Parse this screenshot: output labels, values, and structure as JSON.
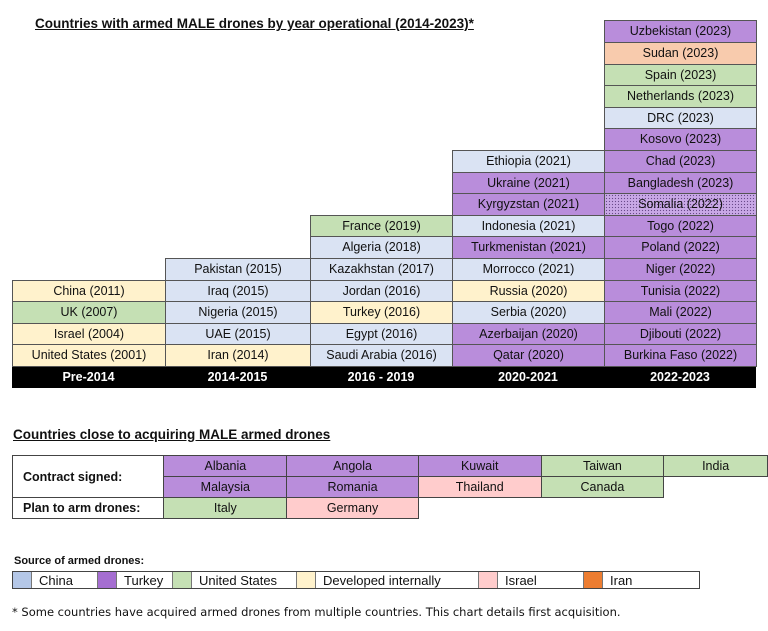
{
  "chart_data": {
    "type": "table",
    "title": "Countries with armed MALE drones by year operational (2014-2023)*",
    "source_colors": {
      "China": "#dae3f3",
      "China_alt": "#dce9f5",
      "Turkey": "#b98ddb",
      "United States": "#c5e0b4",
      "Developed internally": "#fff2cc",
      "Israel": "#ffcccc",
      "Iran": "#f8cbad",
      "Somalia_pattern": "#c9a8e6"
    },
    "columns": [
      {
        "header": "Pre-2014",
        "entries": [
          {
            "label": "United States (2001)",
            "source": "Developed internally"
          },
          {
            "label": "Israel (2004)",
            "source": "Developed internally"
          },
          {
            "label": "UK (2007)",
            "source": "United States"
          },
          {
            "label": "China (2011)",
            "source": "Developed internally"
          }
        ]
      },
      {
        "header": "2014-2015",
        "entries": [
          {
            "label": "Iran (2014)",
            "source": "Developed internally"
          },
          {
            "label": "UAE (2015)",
            "source": "China"
          },
          {
            "label": "Nigeria (2015)",
            "source": "China"
          },
          {
            "label": "Iraq (2015)",
            "source": "China"
          },
          {
            "label": "Pakistan (2015)",
            "source": "China"
          }
        ]
      },
      {
        "header": "2016 - 2019",
        "entries": [
          {
            "label": "Saudi Arabia (2016)",
            "source": "China"
          },
          {
            "label": "Egypt (2016)",
            "source": "China"
          },
          {
            "label": "Turkey (2016)",
            "source": "Developed internally"
          },
          {
            "label": "Jordan (2016)",
            "source": "China"
          },
          {
            "label": "Kazakhstan (2017)",
            "source": "China"
          },
          {
            "label": "Algeria (2018)",
            "source": "China"
          },
          {
            "label": "France (2019)",
            "source": "United States"
          }
        ]
      },
      {
        "header": "2020-2021",
        "entries": [
          {
            "label": "Qatar (2020)",
            "source": "Turkey"
          },
          {
            "label": "Azerbaijan (2020)",
            "source": "Turkey"
          },
          {
            "label": "Serbia (2020)",
            "source": "China"
          },
          {
            "label": "Russia (2020)",
            "source": "Developed internally"
          },
          {
            "label": "Morrocco (2021)",
            "source": "China"
          },
          {
            "label": "Turkmenistan (2021)",
            "source": "Turkey"
          },
          {
            "label": "Indonesia (2021)",
            "source": "China"
          },
          {
            "label": "Kyrgyzstan (2021)",
            "source": "Turkey"
          },
          {
            "label": "Ukraine (2021)",
            "source": "Turkey"
          },
          {
            "label": "Ethiopia (2021)",
            "source": "China"
          }
        ]
      },
      {
        "header": "2022-2023",
        "entries": [
          {
            "label": "Burkina Faso (2022)",
            "source": "Turkey"
          },
          {
            "label": "Djibouti (2022)",
            "source": "Turkey"
          },
          {
            "label": "Mali (2022)",
            "source": "Turkey"
          },
          {
            "label": "Tunisia (2022)",
            "source": "Turkey"
          },
          {
            "label": "Niger (2022)",
            "source": "Turkey"
          },
          {
            "label": "Poland (2022)",
            "source": "Turkey"
          },
          {
            "label": "Togo (2022)",
            "source": "Turkey"
          },
          {
            "label": "Somalia (2022)",
            "source": "Turkey",
            "pattern": "dotted"
          },
          {
            "label": "Bangladesh (2023)",
            "source": "Turkey"
          },
          {
            "label": "Chad (2023)",
            "source": "Turkey"
          },
          {
            "label": "Kosovo (2023)",
            "source": "Turkey"
          },
          {
            "label": "DRC (2023)",
            "source": "China"
          },
          {
            "label": "Netherlands (2023)",
            "source": "United States"
          },
          {
            "label": "Spain (2023)",
            "source": "United States"
          },
          {
            "label": "Sudan (2023)",
            "source": "Iran"
          },
          {
            "label": "Uzbekistan (2023)",
            "source": "Turkey"
          }
        ]
      }
    ]
  },
  "close_section": {
    "title": "Countries close to acquiring MALE armed drones",
    "contract_label": "Contract signed:",
    "plan_label": "Plan to arm drones:",
    "contract_row1": [
      {
        "label": "Albania",
        "source": "Turkey"
      },
      {
        "label": "Angola",
        "source": "Turkey"
      },
      {
        "label": "Kuwait",
        "source": "Turkey"
      },
      {
        "label": "Taiwan",
        "source": "United States"
      },
      {
        "label": "India",
        "source": "United States"
      }
    ],
    "contract_row2": [
      {
        "label": "Malaysia",
        "source": "Turkey"
      },
      {
        "label": "Romania",
        "source": "Turkey"
      },
      {
        "label": "Thailand",
        "source": "Israel"
      },
      {
        "label": "Canada",
        "source": "United States"
      }
    ],
    "plan_row": [
      {
        "label": "Italy",
        "source": "United States"
      },
      {
        "label": "Germany",
        "source": "Israel"
      }
    ]
  },
  "legend": {
    "title": "Source of armed drones:",
    "items": [
      {
        "label": "China",
        "color": "#b4c7e7"
      },
      {
        "label": "Turkey",
        "color": "#a56ed1"
      },
      {
        "label": "United States",
        "color": "#c5e0b4"
      },
      {
        "label": "Developed internally",
        "color": "#fff2cc"
      },
      {
        "label": "Israel",
        "color": "#ffcccc"
      },
      {
        "label": "Iran",
        "color": "#ed7d31"
      }
    ]
  },
  "footnote": "* Some countries have acquired armed drones from multiple countries. This chart details first acquisition."
}
